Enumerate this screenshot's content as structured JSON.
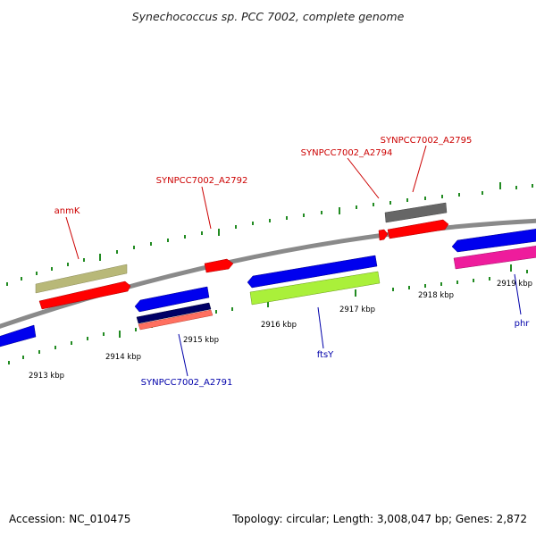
{
  "title": "Synechococcus sp. PCC 7002, complete genome",
  "footer": {
    "accession": "Accession: NC_010475",
    "summary": "Topology: circular; Length: 3,008,047 bp; Genes: 2,872"
  },
  "ticks": [
    "2913 kbp",
    "2914 kbp",
    "2915 kbp",
    "2916 kbp",
    "2917 kbp",
    "2918 kbp",
    "2919 kbp"
  ],
  "labels": {
    "anmK": "anmK",
    "a2791": "SYNPCC7002_A2791",
    "a2792": "SYNPCC7002_A2792",
    "a2794": "SYNPCC7002_A2794",
    "a2795": "SYNPCC7002_A2795",
    "ftsY": "ftsY",
    "phr": "phr"
  },
  "colors": {
    "backbone": "#888888",
    "tick": "#228B22",
    "forward_label": "#cc0000",
    "reverse_label": "#0000aa",
    "forward_gene": "#ff0000",
    "reverse_gene": "#0000ee",
    "olive_feature": "#b8b878",
    "green_feature": "#aaf03a",
    "gray_feature": "#666666",
    "navy_feature": "#000066",
    "salmon_feature": "#ff7060",
    "magenta_feature": "#ee1c9c"
  }
}
